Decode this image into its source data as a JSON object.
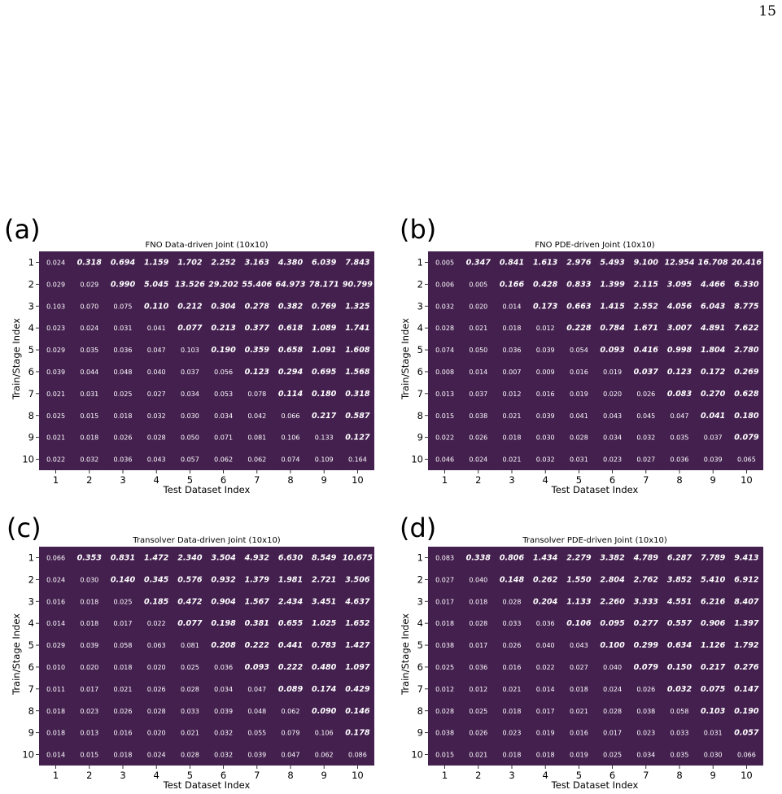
{
  "page_number": "15",
  "colors": {
    "cell": "#44204f",
    "text": "#ffffff"
  },
  "chart_data": [
    {
      "tag": "(a)",
      "type": "heatmap",
      "title": "FNO Data-driven Joint (10x10)",
      "xlabel": "Test Dataset Index",
      "ylabel": "Train/Stage Index",
      "x": [
        "1",
        "2",
        "3",
        "4",
        "5",
        "6",
        "7",
        "8",
        "9",
        "10"
      ],
      "y": [
        "1",
        "2",
        "3",
        "4",
        "5",
        "6",
        "7",
        "8",
        "9",
        "10"
      ],
      "values": [
        [
          "0.024",
          "0.318",
          "0.694",
          "1.159",
          "1.702",
          "2.252",
          "3.163",
          "4.380",
          "6.039",
          "7.843"
        ],
        [
          "0.029",
          "0.029",
          "0.990",
          "5.045",
          "13.526",
          "29.202",
          "55.406",
          "64.973",
          "78.171",
          "90.799"
        ],
        [
          "0.103",
          "0.070",
          "0.075",
          "0.110",
          "0.212",
          "0.304",
          "0.278",
          "0.382",
          "0.769",
          "1.325"
        ],
        [
          "0.023",
          "0.024",
          "0.031",
          "0.041",
          "0.077",
          "0.213",
          "0.377",
          "0.618",
          "1.089",
          "1.741"
        ],
        [
          "0.029",
          "0.035",
          "0.036",
          "0.047",
          "0.103",
          "0.190",
          "0.359",
          "0.658",
          "1.091",
          "1.608"
        ],
        [
          "0.039",
          "0.044",
          "0.048",
          "0.040",
          "0.037",
          "0.056",
          "0.123",
          "0.294",
          "0.695",
          "1.568"
        ],
        [
          "0.021",
          "0.031",
          "0.025",
          "0.027",
          "0.034",
          "0.053",
          "0.078",
          "0.114",
          "0.180",
          "0.318"
        ],
        [
          "0.025",
          "0.015",
          "0.018",
          "0.032",
          "0.030",
          "0.034",
          "0.042",
          "0.066",
          "0.217",
          "0.587"
        ],
        [
          "0.021",
          "0.018",
          "0.026",
          "0.028",
          "0.050",
          "0.071",
          "0.081",
          "0.106",
          "0.133",
          "0.127"
        ],
        [
          "0.022",
          "0.032",
          "0.036",
          "0.043",
          "0.057",
          "0.062",
          "0.062",
          "0.074",
          "0.109",
          "0.164"
        ]
      ],
      "bold": [
        [
          0,
          1,
          1,
          1,
          1,
          1,
          1,
          1,
          1,
          1
        ],
        [
          0,
          0,
          1,
          1,
          1,
          1,
          1,
          1,
          1,
          1
        ],
        [
          0,
          0,
          0,
          1,
          1,
          1,
          1,
          1,
          1,
          1
        ],
        [
          0,
          0,
          0,
          0,
          1,
          1,
          1,
          1,
          1,
          1
        ],
        [
          0,
          0,
          0,
          0,
          0,
          1,
          1,
          1,
          1,
          1
        ],
        [
          0,
          0,
          0,
          0,
          0,
          0,
          1,
          1,
          1,
          1
        ],
        [
          0,
          0,
          0,
          0,
          0,
          0,
          0,
          1,
          1,
          1
        ],
        [
          0,
          0,
          0,
          0,
          0,
          0,
          0,
          0,
          1,
          1
        ],
        [
          0,
          0,
          0,
          0,
          0,
          0,
          0,
          0,
          0,
          1
        ],
        [
          0,
          0,
          0,
          0,
          0,
          0,
          0,
          0,
          0,
          0
        ]
      ]
    },
    {
      "tag": "(b)",
      "type": "heatmap",
      "title": "FNO PDE-driven Joint (10x10)",
      "xlabel": "Test Dataset Index",
      "ylabel": "Train/Stage Index",
      "x": [
        "1",
        "2",
        "3",
        "4",
        "5",
        "6",
        "7",
        "8",
        "9",
        "10"
      ],
      "y": [
        "1",
        "2",
        "3",
        "4",
        "5",
        "6",
        "7",
        "8",
        "9",
        "10"
      ],
      "values": [
        [
          "0.005",
          "0.347",
          "0.841",
          "1.613",
          "2.976",
          "5.493",
          "9.100",
          "12.954",
          "16.708",
          "20.416"
        ],
        [
          "0.006",
          "0.005",
          "0.166",
          "0.428",
          "0.833",
          "1.399",
          "2.115",
          "3.095",
          "4.466",
          "6.330"
        ],
        [
          "0.032",
          "0.020",
          "0.014",
          "0.173",
          "0.663",
          "1.415",
          "2.552",
          "4.056",
          "6.043",
          "8.775"
        ],
        [
          "0.028",
          "0.021",
          "0.018",
          "0.012",
          "0.228",
          "0.784",
          "1.671",
          "3.007",
          "4.891",
          "7.622"
        ],
        [
          "0.074",
          "0.050",
          "0.036",
          "0.039",
          "0.054",
          "0.093",
          "0.416",
          "0.998",
          "1.804",
          "2.780"
        ],
        [
          "0.008",
          "0.014",
          "0.007",
          "0.009",
          "0.016",
          "0.019",
          "0.037",
          "0.123",
          "0.172",
          "0.269"
        ],
        [
          "0.013",
          "0.037",
          "0.012",
          "0.016",
          "0.019",
          "0.020",
          "0.026",
          "0.083",
          "0.270",
          "0.628"
        ],
        [
          "0.015",
          "0.038",
          "0.021",
          "0.039",
          "0.041",
          "0.043",
          "0.045",
          "0.047",
          "0.041",
          "0.180"
        ],
        [
          "0.022",
          "0.026",
          "0.018",
          "0.030",
          "0.028",
          "0.034",
          "0.032",
          "0.035",
          "0.037",
          "0.079"
        ],
        [
          "0.046",
          "0.024",
          "0.021",
          "0.032",
          "0.031",
          "0.023",
          "0.027",
          "0.036",
          "0.039",
          "0.065"
        ]
      ],
      "bold": [
        [
          0,
          1,
          1,
          1,
          1,
          1,
          1,
          1,
          1,
          1
        ],
        [
          0,
          0,
          1,
          1,
          1,
          1,
          1,
          1,
          1,
          1
        ],
        [
          0,
          0,
          0,
          1,
          1,
          1,
          1,
          1,
          1,
          1
        ],
        [
          0,
          0,
          0,
          0,
          1,
          1,
          1,
          1,
          1,
          1
        ],
        [
          0,
          0,
          0,
          0,
          0,
          1,
          1,
          1,
          1,
          1
        ],
        [
          0,
          0,
          0,
          0,
          0,
          0,
          1,
          1,
          1,
          1
        ],
        [
          0,
          0,
          0,
          0,
          0,
          0,
          0,
          1,
          1,
          1
        ],
        [
          0,
          0,
          0,
          0,
          0,
          0,
          0,
          0,
          1,
          1
        ],
        [
          0,
          0,
          0,
          0,
          0,
          0,
          0,
          0,
          0,
          1
        ],
        [
          0,
          0,
          0,
          0,
          0,
          0,
          0,
          0,
          0,
          0
        ]
      ]
    },
    {
      "tag": "(c)",
      "type": "heatmap",
      "title": "Transolver Data-driven Joint (10x10)",
      "xlabel": "Test Dataset Index",
      "ylabel": "Train/Stage Index",
      "x": [
        "1",
        "2",
        "3",
        "4",
        "5",
        "6",
        "7",
        "8",
        "9",
        "10"
      ],
      "y": [
        "1",
        "2",
        "3",
        "4",
        "5",
        "6",
        "7",
        "8",
        "9",
        "10"
      ],
      "values": [
        [
          "0.066",
          "0.353",
          "0.831",
          "1.472",
          "2.340",
          "3.504",
          "4.932",
          "6.630",
          "8.549",
          "10.675"
        ],
        [
          "0.024",
          "0.030",
          "0.140",
          "0.345",
          "0.576",
          "0.932",
          "1.379",
          "1.981",
          "2.721",
          "3.506"
        ],
        [
          "0.016",
          "0.018",
          "0.025",
          "0.185",
          "0.472",
          "0.904",
          "1.567",
          "2.434",
          "3.451",
          "4.637"
        ],
        [
          "0.014",
          "0.018",
          "0.017",
          "0.022",
          "0.077",
          "0.198",
          "0.381",
          "0.655",
          "1.025",
          "1.652"
        ],
        [
          "0.029",
          "0.039",
          "0.058",
          "0.063",
          "0.081",
          "0.208",
          "0.222",
          "0.441",
          "0.783",
          "1.427"
        ],
        [
          "0.010",
          "0.020",
          "0.018",
          "0.020",
          "0.025",
          "0.036",
          "0.093",
          "0.222",
          "0.480",
          "1.097"
        ],
        [
          "0.011",
          "0.017",
          "0.021",
          "0.026",
          "0.028",
          "0.034",
          "0.047",
          "0.089",
          "0.174",
          "0.429"
        ],
        [
          "0.018",
          "0.023",
          "0.026",
          "0.028",
          "0.033",
          "0.039",
          "0.048",
          "0.062",
          "0.090",
          "0.146"
        ],
        [
          "0.018",
          "0.013",
          "0.016",
          "0.020",
          "0.021",
          "0.032",
          "0.055",
          "0.079",
          "0.106",
          "0.178"
        ],
        [
          "0.014",
          "0.015",
          "0.018",
          "0.024",
          "0.028",
          "0.032",
          "0.039",
          "0.047",
          "0.062",
          "0.086"
        ]
      ],
      "bold": [
        [
          0,
          1,
          1,
          1,
          1,
          1,
          1,
          1,
          1,
          1
        ],
        [
          0,
          0,
          1,
          1,
          1,
          1,
          1,
          1,
          1,
          1
        ],
        [
          0,
          0,
          0,
          1,
          1,
          1,
          1,
          1,
          1,
          1
        ],
        [
          0,
          0,
          0,
          0,
          1,
          1,
          1,
          1,
          1,
          1
        ],
        [
          0,
          0,
          0,
          0,
          0,
          1,
          1,
          1,
          1,
          1
        ],
        [
          0,
          0,
          0,
          0,
          0,
          0,
          1,
          1,
          1,
          1
        ],
        [
          0,
          0,
          0,
          0,
          0,
          0,
          0,
          1,
          1,
          1
        ],
        [
          0,
          0,
          0,
          0,
          0,
          0,
          0,
          0,
          1,
          1
        ],
        [
          0,
          0,
          0,
          0,
          0,
          0,
          0,
          0,
          0,
          1
        ],
        [
          0,
          0,
          0,
          0,
          0,
          0,
          0,
          0,
          0,
          0
        ]
      ]
    },
    {
      "tag": "(d)",
      "type": "heatmap",
      "title": "Transolver PDE-driven Joint (10x10)",
      "xlabel": "Test Dataset Index",
      "ylabel": "Train/Stage Index",
      "x": [
        "1",
        "2",
        "3",
        "4",
        "5",
        "6",
        "7",
        "8",
        "9",
        "10"
      ],
      "y": [
        "1",
        "2",
        "3",
        "4",
        "5",
        "6",
        "7",
        "8",
        "9",
        "10"
      ],
      "values": [
        [
          "0.083",
          "0.338",
          "0.806",
          "1.434",
          "2.279",
          "3.382",
          "4.789",
          "6.287",
          "7.789",
          "9.413"
        ],
        [
          "0.027",
          "0.040",
          "0.148",
          "0.262",
          "1.550",
          "2.804",
          "2.762",
          "3.852",
          "5.410",
          "6.912"
        ],
        [
          "0.017",
          "0.018",
          "0.028",
          "0.204",
          "1.133",
          "2.260",
          "3.333",
          "4.551",
          "6.216",
          "8.407"
        ],
        [
          "0.018",
          "0.028",
          "0.033",
          "0.036",
          "0.106",
          "0.095",
          "0.277",
          "0.557",
          "0.906",
          "1.397"
        ],
        [
          "0.038",
          "0.017",
          "0.026",
          "0.040",
          "0.043",
          "0.100",
          "0.299",
          "0.634",
          "1.126",
          "1.792"
        ],
        [
          "0.025",
          "0.036",
          "0.016",
          "0.022",
          "0.027",
          "0.040",
          "0.079",
          "0.150",
          "0.217",
          "0.276"
        ],
        [
          "0.012",
          "0.012",
          "0.021",
          "0.014",
          "0.018",
          "0.024",
          "0.026",
          "0.032",
          "0.075",
          "0.147"
        ],
        [
          "0.028",
          "0.025",
          "0.018",
          "0.017",
          "0.021",
          "0.028",
          "0.038",
          "0.058",
          "0.103",
          "0.190"
        ],
        [
          "0.038",
          "0.026",
          "0.023",
          "0.019",
          "0.016",
          "0.017",
          "0.023",
          "0.033",
          "0.031",
          "0.057"
        ],
        [
          "0.015",
          "0.021",
          "0.018",
          "0.018",
          "0.019",
          "0.025",
          "0.034",
          "0.035",
          "0.030",
          "0.066"
        ]
      ],
      "bold": [
        [
          0,
          1,
          1,
          1,
          1,
          1,
          1,
          1,
          1,
          1
        ],
        [
          0,
          0,
          1,
          1,
          1,
          1,
          1,
          1,
          1,
          1
        ],
        [
          0,
          0,
          0,
          1,
          1,
          1,
          1,
          1,
          1,
          1
        ],
        [
          0,
          0,
          0,
          0,
          1,
          1,
          1,
          1,
          1,
          1
        ],
        [
          0,
          0,
          0,
          0,
          0,
          1,
          1,
          1,
          1,
          1
        ],
        [
          0,
          0,
          0,
          0,
          0,
          0,
          1,
          1,
          1,
          1
        ],
        [
          0,
          0,
          0,
          0,
          0,
          0,
          0,
          1,
          1,
          1
        ],
        [
          0,
          0,
          0,
          0,
          0,
          0,
          0,
          0,
          1,
          1
        ],
        [
          0,
          0,
          0,
          0,
          0,
          0,
          0,
          0,
          0,
          1
        ],
        [
          0,
          0,
          0,
          0,
          0,
          0,
          0,
          0,
          0,
          0
        ]
      ]
    }
  ]
}
